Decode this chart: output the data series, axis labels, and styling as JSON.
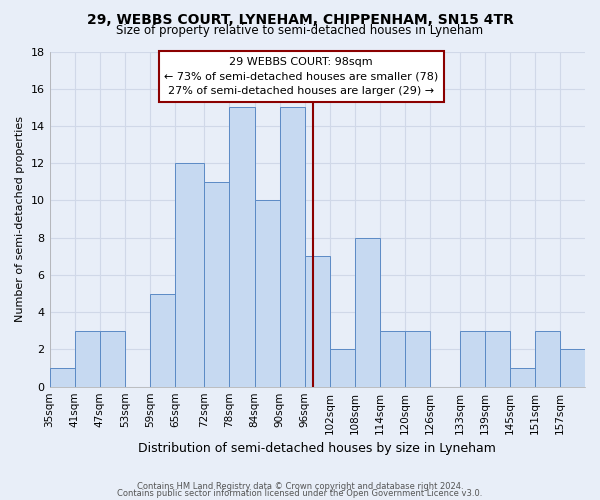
{
  "title": "29, WEBBS COURT, LYNEHAM, CHIPPENHAM, SN15 4TR",
  "subtitle": "Size of property relative to semi-detached houses in Lyneham",
  "xlabel": "Distribution of semi-detached houses by size in Lyneham",
  "ylabel": "Number of semi-detached properties",
  "bin_labels": [
    "35sqm",
    "41sqm",
    "47sqm",
    "53sqm",
    "59sqm",
    "65sqm",
    "72sqm",
    "78sqm",
    "84sqm",
    "90sqm",
    "96sqm",
    "102sqm",
    "108sqm",
    "114sqm",
    "120sqm",
    "126sqm",
    "133sqm",
    "139sqm",
    "145sqm",
    "151sqm",
    "157sqm"
  ],
  "bin_edges": [
    35,
    41,
    47,
    53,
    59,
    65,
    72,
    78,
    84,
    90,
    96,
    102,
    108,
    114,
    120,
    126,
    133,
    139,
    145,
    151,
    157,
    163
  ],
  "counts": [
    1,
    3,
    3,
    0,
    5,
    12,
    11,
    15,
    10,
    15,
    7,
    2,
    8,
    3,
    3,
    0,
    3,
    3,
    1,
    3,
    2
  ],
  "bar_color": "#c6d9f1",
  "bar_edge_color": "#5b8ac5",
  "property_line_x": 98,
  "property_line_color": "#8b0000",
  "annotation_title": "29 WEBBS COURT: 98sqm",
  "annotation_line1": "← 73% of semi-detached houses are smaller (78)",
  "annotation_line2": "27% of semi-detached houses are larger (29) →",
  "annotation_box_color": "#ffffff",
  "annotation_box_edge": "#8b0000",
  "ylim": [
    0,
    18
  ],
  "yticks": [
    0,
    2,
    4,
    6,
    8,
    10,
    12,
    14,
    16,
    18
  ],
  "footer1": "Contains HM Land Registry data © Crown copyright and database right 2024.",
  "footer2": "Contains public sector information licensed under the Open Government Licence v3.0.",
  "background_color": "#e8eef8",
  "grid_color": "#d0d8e8",
  "title_fontsize": 10,
  "subtitle_fontsize": 8.5,
  "ylabel_fontsize": 8,
  "xlabel_fontsize": 9
}
